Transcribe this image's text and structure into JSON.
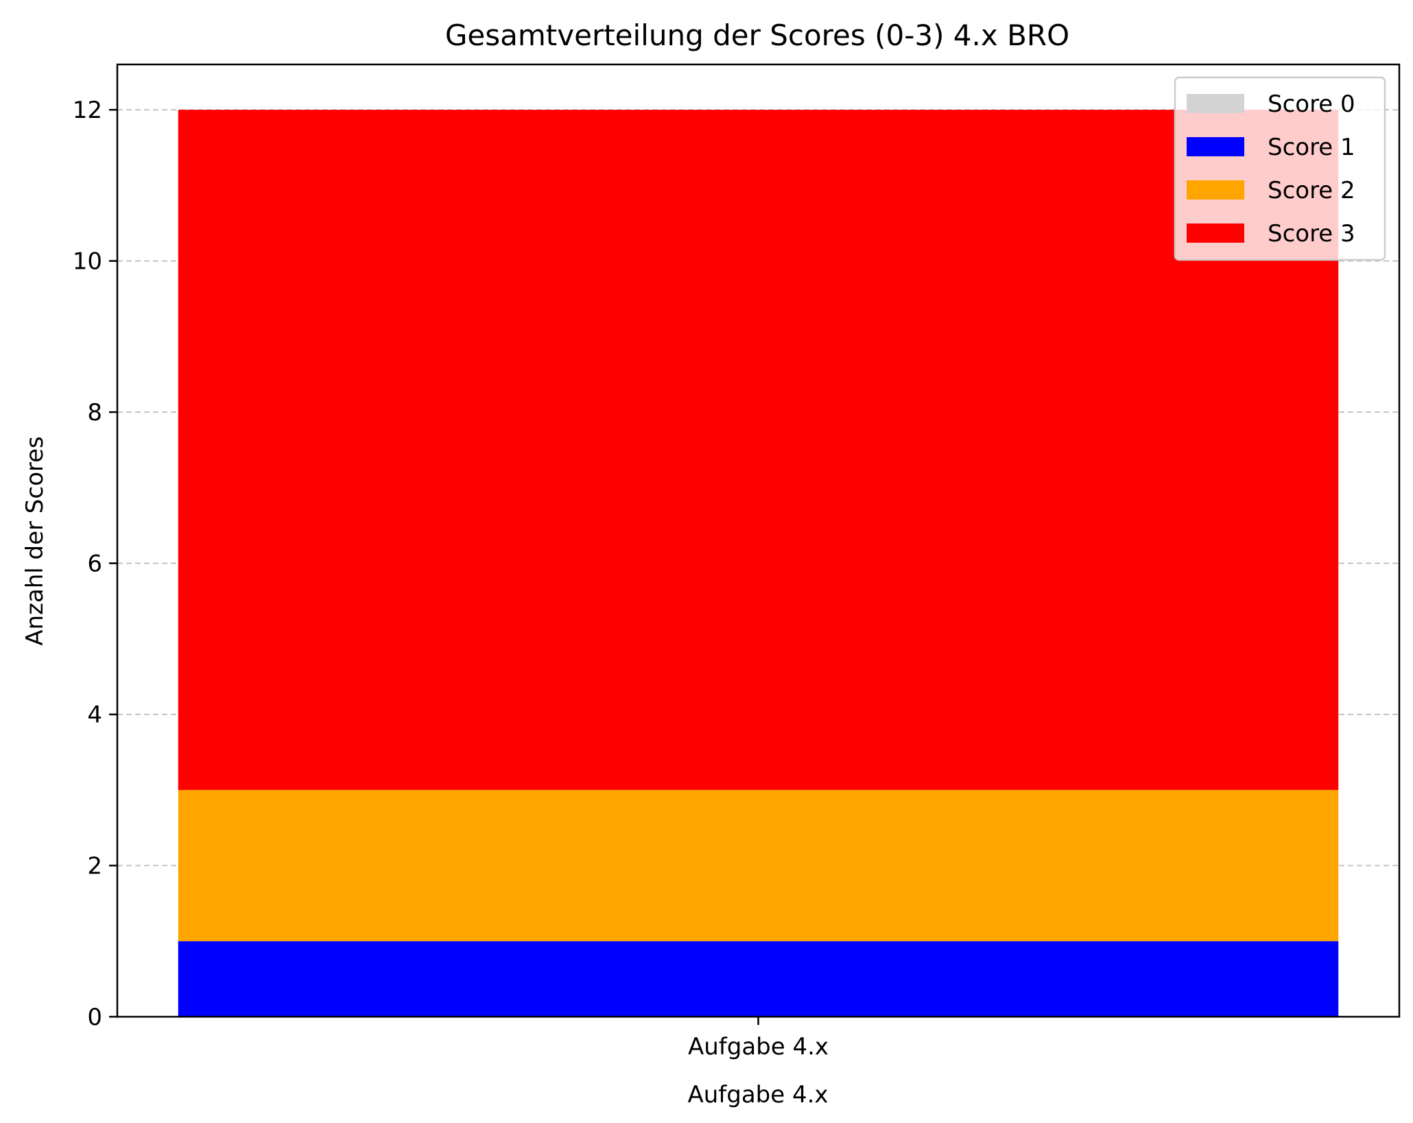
{
  "chart_data": {
    "type": "bar",
    "stacked": true,
    "title": "Gesamtverteilung der Scores (0-3) 4.x BRO",
    "xlabel": "Aufgabe 4.x",
    "ylabel": "Anzahl der Scores",
    "categories": [
      "Aufgabe 4.x"
    ],
    "ylim": [
      0,
      12.6
    ],
    "yticks": [
      0,
      2,
      4,
      6,
      8,
      10,
      12
    ],
    "grid": "y-dashed",
    "legend_position": "top-right",
    "series": [
      {
        "name": "Score 0",
        "values": [
          0
        ],
        "color": "#d3d3d3"
      },
      {
        "name": "Score 1",
        "values": [
          1
        ],
        "color": "#0000ff"
      },
      {
        "name": "Score 2",
        "values": [
          2
        ],
        "color": "#ffa500"
      },
      {
        "name": "Score 3",
        "values": [
          9
        ],
        "color": "#ff0000"
      }
    ]
  }
}
